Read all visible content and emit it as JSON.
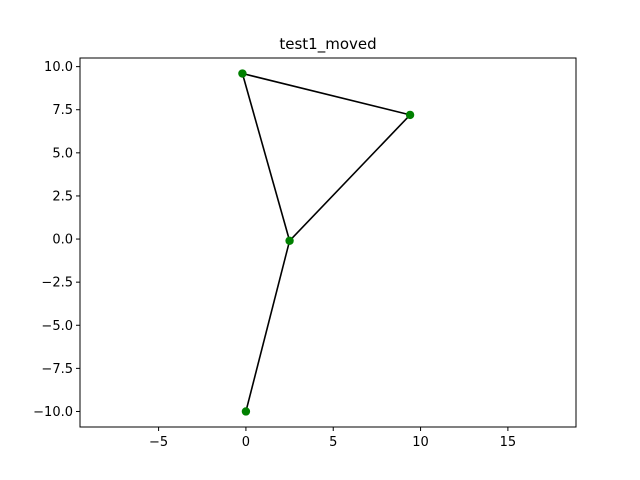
{
  "chart_data": {
    "type": "line",
    "title": "test1_moved",
    "xlabel": "",
    "ylabel": "",
    "xlim": [
      -9.5,
      18.9
    ],
    "ylim": [
      -10.9,
      10.5
    ],
    "xticks": [
      -5,
      0,
      5,
      10,
      15
    ],
    "yticks": [
      -10.0,
      -7.5,
      -5.0,
      -2.5,
      0.0,
      2.5,
      5.0,
      7.5,
      10.0
    ],
    "xtick_labels": [
      "−5",
      "0",
      "5",
      "10",
      "15"
    ],
    "ytick_labels": [
      "−10.0",
      "−7.5",
      "−5.0",
      "−2.5",
      "0.0",
      "2.5",
      "5.0",
      "7.5",
      "10.0"
    ],
    "grid": false,
    "points": [
      {
        "x": -0.2,
        "y": 9.6
      },
      {
        "x": 9.4,
        "y": 7.2
      },
      {
        "x": 2.5,
        "y": -0.1
      },
      {
        "x": 0.0,
        "y": -10.0
      }
    ],
    "segments": [
      [
        0,
        1
      ],
      [
        1,
        2
      ],
      [
        2,
        0
      ],
      [
        2,
        3
      ]
    ],
    "line_color": "#000000",
    "marker_color": "#008000"
  }
}
